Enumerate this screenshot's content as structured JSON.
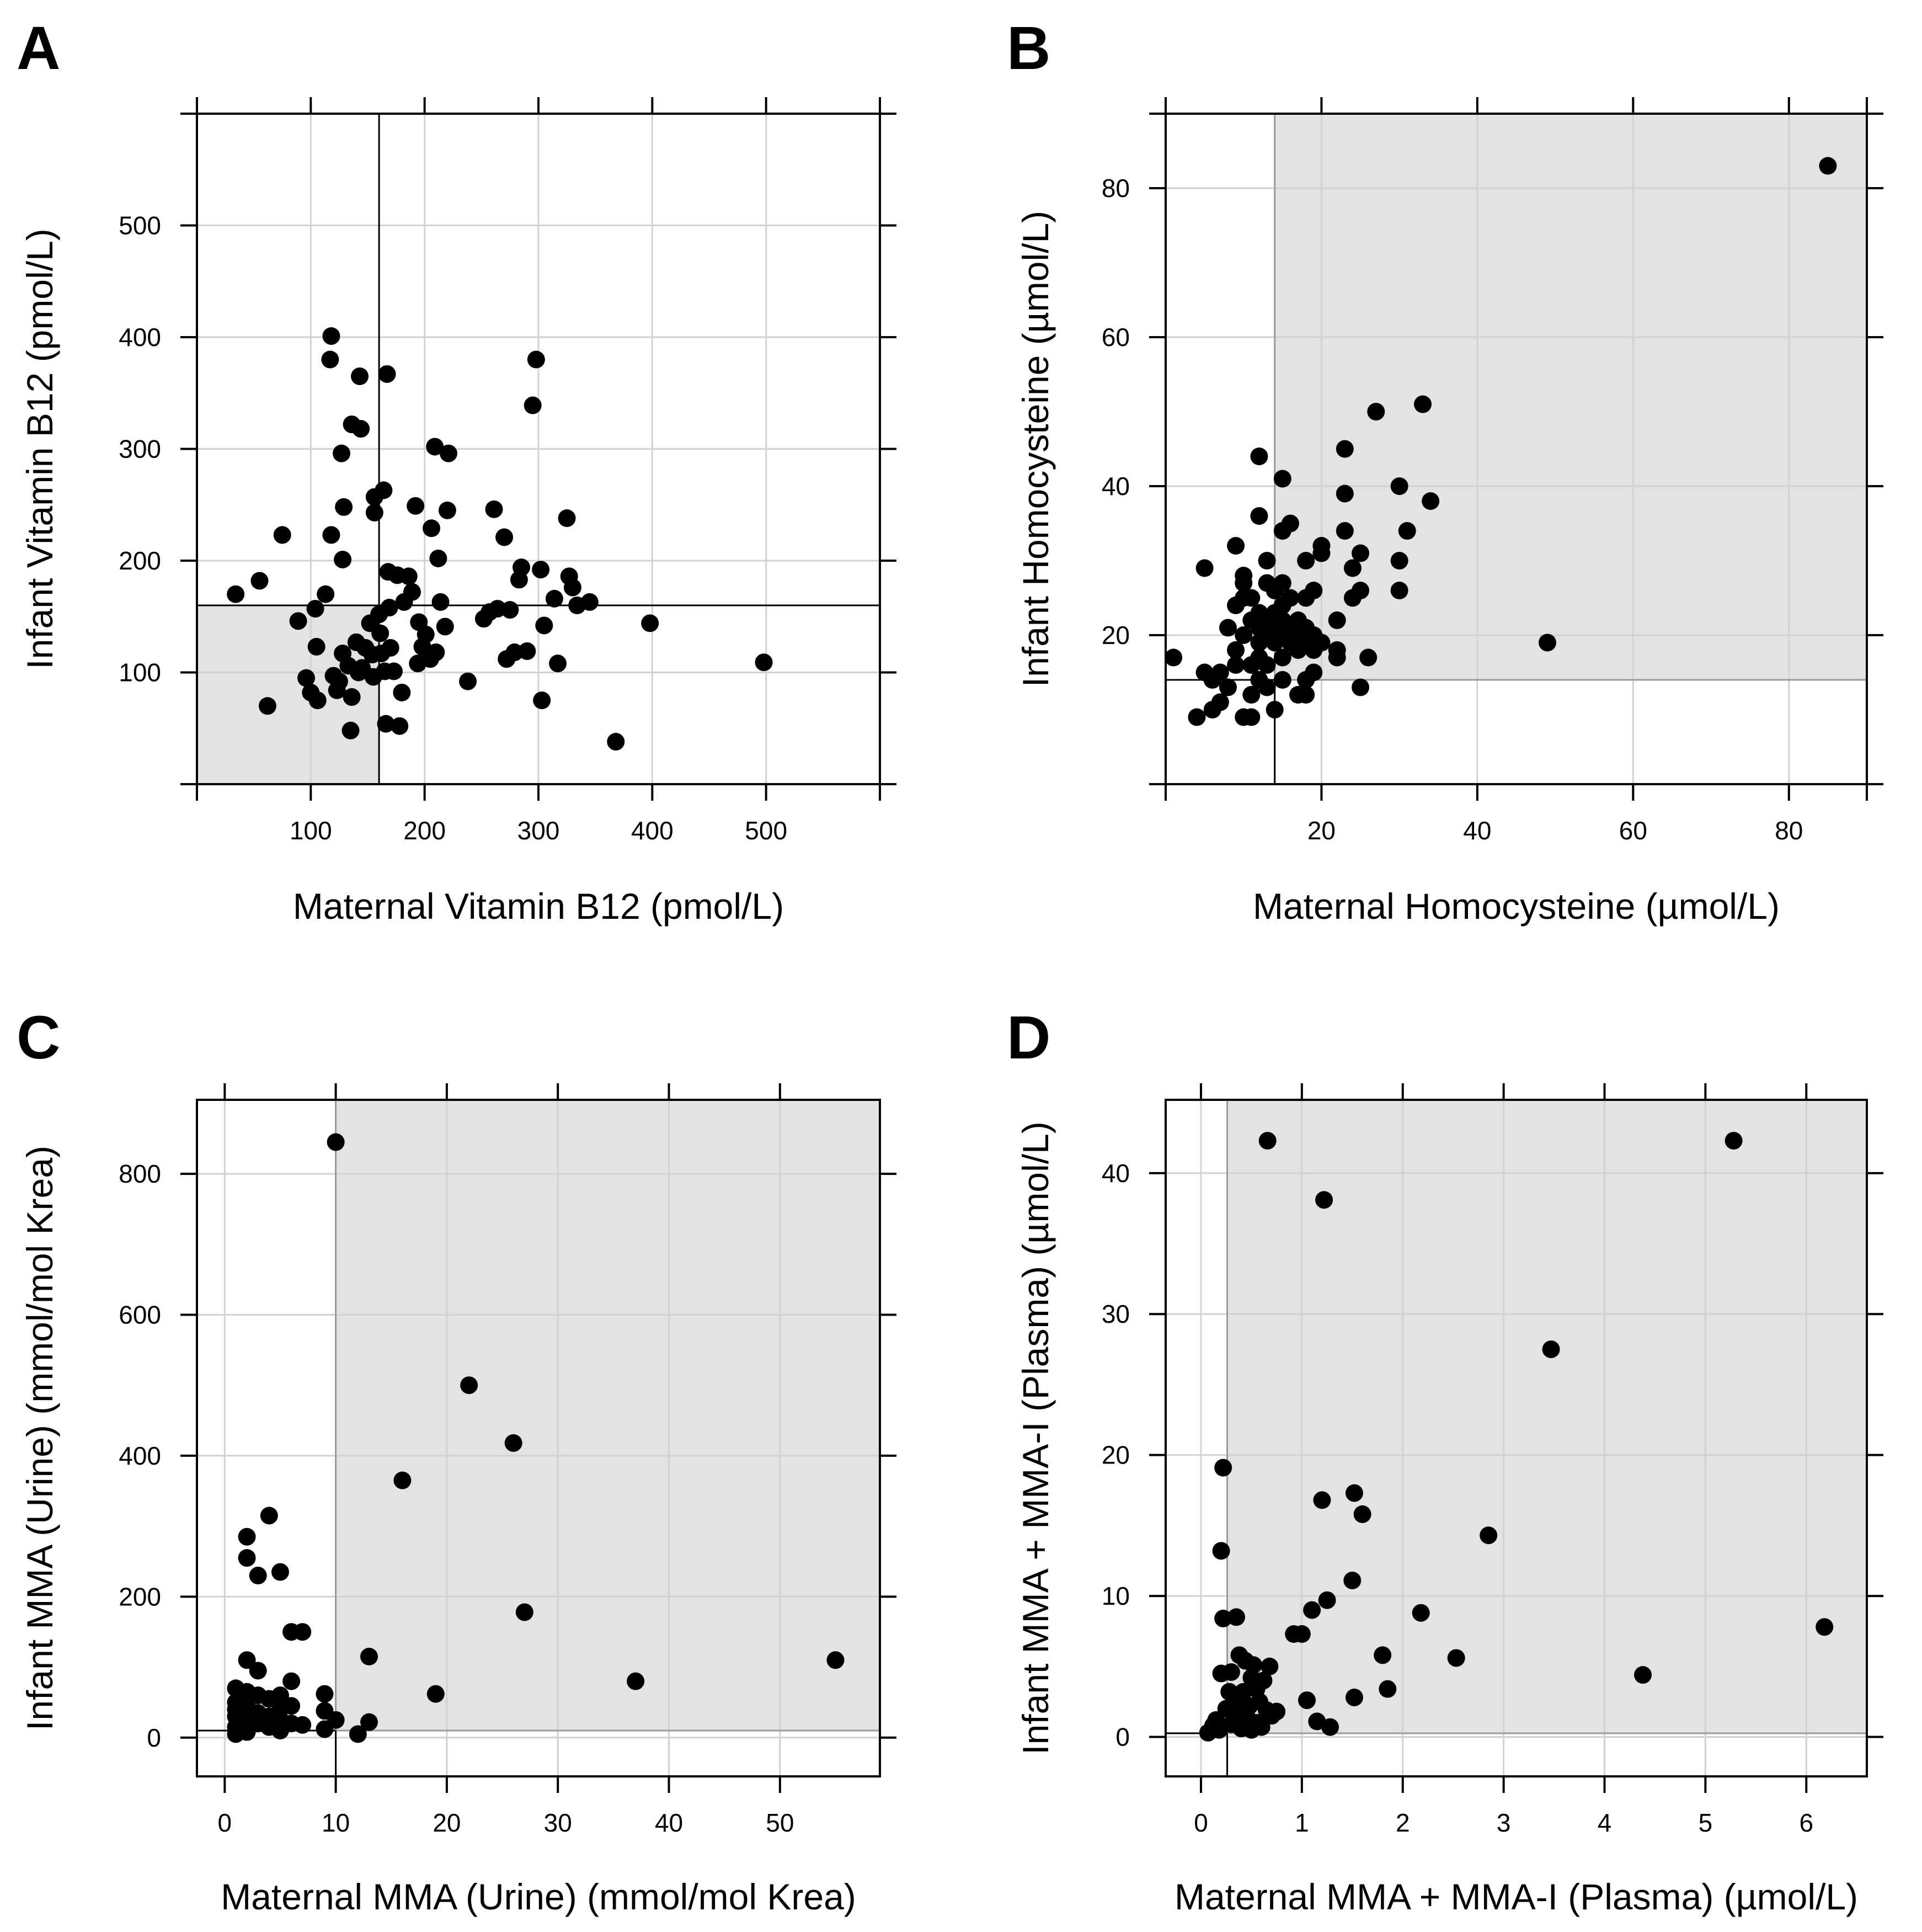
{
  "chart_data": [
    {
      "type": "scatter",
      "panel_label": "A",
      "xlabel": "Maternal Vitamin B12 (pmol/L)",
      "ylabel": "Infant Vitamin B12 (pmol/L)",
      "xlim": [
        0,
        600
      ],
      "ylim": [
        0,
        600
      ],
      "xticks": [
        100,
        200,
        300,
        400,
        500
      ],
      "yticks": [
        100,
        200,
        300,
        400,
        500
      ],
      "grid": true,
      "cutoff": {
        "x": 160,
        "y": 160
      },
      "shaded_region": "below-left of cutoffs",
      "points": [
        [
          34,
          170
        ],
        [
          55,
          182
        ],
        [
          62,
          70
        ],
        [
          75,
          223
        ],
        [
          89,
          146
        ],
        [
          96,
          95
        ],
        [
          104,
          157
        ],
        [
          100,
          82
        ],
        [
          105,
          123
        ],
        [
          106,
          75
        ],
        [
          113,
          170
        ],
        [
          118,
          401
        ],
        [
          117,
          380
        ],
        [
          118,
          223
        ],
        [
          120,
          97
        ],
        [
          123,
          84
        ],
        [
          125,
          92
        ],
        [
          128,
          201
        ],
        [
          127,
          296
        ],
        [
          128,
          117
        ],
        [
          129,
          248
        ],
        [
          133,
          106
        ],
        [
          136,
          78
        ],
        [
          135,
          48
        ],
        [
          136,
          322
        ],
        [
          140,
          127
        ],
        [
          142,
          100
        ],
        [
          143,
          365
        ],
        [
          144,
          318
        ],
        [
          145,
          104
        ],
        [
          148,
          122
        ],
        [
          152,
          144
        ],
        [
          154,
          116
        ],
        [
          155,
          96
        ],
        [
          156,
          243
        ],
        [
          156,
          257
        ],
        [
          160,
          152
        ],
        [
          161,
          135
        ],
        [
          162,
          117
        ],
        [
          164,
          263
        ],
        [
          165,
          101
        ],
        [
          166,
          54
        ],
        [
          167,
          367
        ],
        [
          168,
          190
        ],
        [
          169,
          158
        ],
        [
          170,
          122
        ],
        [
          173,
          101
        ],
        [
          176,
          187
        ],
        [
          178,
          52
        ],
        [
          180,
          82
        ],
        [
          182,
          163
        ],
        [
          186,
          186
        ],
        [
          189,
          172
        ],
        [
          192,
          249
        ],
        [
          194,
          108
        ],
        [
          195,
          145
        ],
        [
          198,
          123
        ],
        [
          201,
          134
        ],
        [
          205,
          112
        ],
        [
          206,
          229
        ],
        [
          209,
          302
        ],
        [
          210,
          118
        ],
        [
          212,
          202
        ],
        [
          214,
          163
        ],
        [
          218,
          141
        ],
        [
          220,
          245
        ],
        [
          221,
          296
        ],
        [
          238,
          92
        ],
        [
          252,
          148
        ],
        [
          257,
          154
        ],
        [
          261,
          246
        ],
        [
          264,
          157
        ],
        [
          270,
          221
        ],
        [
          272,
          112
        ],
        [
          275,
          156
        ],
        [
          279,
          118
        ],
        [
          283,
          183
        ],
        [
          285,
          194
        ],
        [
          290,
          119
        ],
        [
          295,
          339
        ],
        [
          298,
          380
        ],
        [
          302,
          192
        ],
        [
          303,
          75
        ],
        [
          305,
          142
        ],
        [
          314,
          166
        ],
        [
          317,
          108
        ],
        [
          325,
          238
        ],
        [
          327,
          186
        ],
        [
          330,
          176
        ],
        [
          334,
          160
        ],
        [
          345,
          163
        ],
        [
          368,
          38
        ],
        [
          398,
          144
        ],
        [
          498,
          109
        ]
      ]
    },
    {
      "type": "scatter",
      "panel_label": "B",
      "xlabel": "Maternal Homocysteine (µmol/L)",
      "ylabel": "Infant Homocysteine (µmol/L)",
      "xlim": [
        0,
        90
      ],
      "ylim": [
        0,
        90
      ],
      "xticks": [
        20,
        40,
        60,
        80
      ],
      "yticks": [
        20,
        40,
        60,
        80
      ],
      "grid": true,
      "cutoff": {
        "x": 14,
        "y": 14
      },
      "shaded_region": "above-right of cutoffs",
      "points": [
        [
          1,
          17
        ],
        [
          4,
          9
        ],
        [
          5,
          29
        ],
        [
          5,
          15
        ],
        [
          6,
          10
        ],
        [
          6,
          14
        ],
        [
          7,
          11
        ],
        [
          7,
          15
        ],
        [
          8,
          13
        ],
        [
          8,
          21
        ],
        [
          9,
          16
        ],
        [
          9,
          18
        ],
        [
          9,
          32
        ],
        [
          9,
          24
        ],
        [
          10,
          9
        ],
        [
          10,
          28
        ],
        [
          10,
          27
        ],
        [
          10,
          20
        ],
        [
          10,
          25
        ],
        [
          11,
          12
        ],
        [
          11,
          9
        ],
        [
          11,
          16
        ],
        [
          11,
          22
        ],
        [
          11,
          25
        ],
        [
          12,
          14
        ],
        [
          12,
          17
        ],
        [
          12,
          19
        ],
        [
          12,
          21
        ],
        [
          12,
          23
        ],
        [
          12,
          36
        ],
        [
          12,
          44
        ],
        [
          13,
          13
        ],
        [
          13,
          16
        ],
        [
          13,
          20
        ],
        [
          13,
          22
        ],
        [
          13,
          27
        ],
        [
          13,
          30
        ],
        [
          14,
          10
        ],
        [
          14,
          19
        ],
        [
          14,
          21
        ],
        [
          14,
          23
        ],
        [
          14,
          26
        ],
        [
          15,
          14
        ],
        [
          15,
          17
        ],
        [
          15,
          20
        ],
        [
          15,
          22
        ],
        [
          15,
          24
        ],
        [
          15,
          27
        ],
        [
          15,
          34
        ],
        [
          15,
          41
        ],
        [
          16,
          19
        ],
        [
          16,
          21
        ],
        [
          16,
          25
        ],
        [
          16,
          35
        ],
        [
          17,
          12
        ],
        [
          17,
          18
        ],
        [
          17,
          20
        ],
        [
          17,
          22
        ],
        [
          18,
          12
        ],
        [
          18,
          14
        ],
        [
          18,
          19
        ],
        [
          18,
          21
        ],
        [
          18,
          25
        ],
        [
          18,
          30
        ],
        [
          19,
          15
        ],
        [
          19,
          18
        ],
        [
          19,
          20
        ],
        [
          19,
          26
        ],
        [
          20,
          19
        ],
        [
          20,
          31
        ],
        [
          20,
          32
        ],
        [
          22,
          17
        ],
        [
          22,
          18
        ],
        [
          22,
          22
        ],
        [
          23,
          34
        ],
        [
          23,
          39
        ],
        [
          23,
          45
        ],
        [
          24,
          25
        ],
        [
          24,
          29
        ],
        [
          25,
          13
        ],
        [
          25,
          26
        ],
        [
          25,
          31
        ],
        [
          26,
          17
        ],
        [
          27,
          50
        ],
        [
          30,
          40
        ],
        [
          30,
          30
        ],
        [
          30,
          26
        ],
        [
          31,
          34
        ],
        [
          33,
          51
        ],
        [
          34,
          38
        ],
        [
          49,
          19
        ],
        [
          85,
          83
        ]
      ]
    },
    {
      "type": "scatter",
      "panel_label": "C",
      "xlabel": "Maternal MMA (Urine) (mmol/mol Krea)",
      "ylabel": "Infant MMA (Urine) (mmol/mol Krea)",
      "xlim": [
        -2.5,
        59
      ],
      "ylim": [
        -55,
        905
      ],
      "xticks": [
        0,
        10,
        20,
        30,
        40,
        50
      ],
      "yticks": [
        0,
        200,
        400,
        600,
        800
      ],
      "grid": true,
      "cutoff": {
        "x": 10,
        "y": 10
      },
      "shaded_region": "above-right of cutoffs",
      "points": [
        [
          1,
          70
        ],
        [
          1,
          50
        ],
        [
          1,
          30
        ],
        [
          1,
          15
        ],
        [
          1,
          5
        ],
        [
          1,
          40
        ],
        [
          2,
          285
        ],
        [
          2,
          255
        ],
        [
          2,
          110
        ],
        [
          2,
          65
        ],
        [
          2,
          45
        ],
        [
          2,
          25
        ],
        [
          2,
          10
        ],
        [
          2,
          8
        ],
        [
          3,
          230
        ],
        [
          3,
          95
        ],
        [
          3,
          60
        ],
        [
          3,
          35
        ],
        [
          3,
          20
        ],
        [
          4,
          315
        ],
        [
          4,
          55
        ],
        [
          4,
          30
        ],
        [
          4,
          15
        ],
        [
          5,
          235
        ],
        [
          5,
          60
        ],
        [
          5,
          40
        ],
        [
          5,
          25
        ],
        [
          5,
          10
        ],
        [
          6,
          150
        ],
        [
          6,
          80
        ],
        [
          6,
          45
        ],
        [
          6,
          20
        ],
        [
          7,
          150
        ],
        [
          7,
          18
        ],
        [
          9,
          62
        ],
        [
          9,
          38
        ],
        [
          9,
          12
        ],
        [
          10,
          845
        ],
        [
          10,
          25
        ],
        [
          12,
          5
        ],
        [
          13,
          115
        ],
        [
          13,
          22
        ],
        [
          16,
          365
        ],
        [
          19,
          62
        ],
        [
          22,
          500
        ],
        [
          26,
          418
        ],
        [
          27,
          178
        ],
        [
          37,
          80
        ],
        [
          55,
          110
        ]
      ]
    },
    {
      "type": "scatter",
      "panel_label": "D",
      "xlabel": "Maternal MMA + MMA-I (Plasma) (µmol/L)",
      "ylabel": "Infant MMA + MMA-I (Plasma) (µmol/L)",
      "xlim": [
        -0.35,
        6.6
      ],
      "ylim": [
        -2.8,
        45.2
      ],
      "xticks": [
        0,
        1,
        2,
        3,
        4,
        5,
        6
      ],
      "yticks": [
        0,
        10,
        20,
        30,
        40
      ],
      "grid": true,
      "cutoff": {
        "x": 0.26,
        "y": 0.26
      },
      "shaded_region": "above-right of cutoffs",
      "points": [
        [
          0.07,
          0.3
        ],
        [
          0.12,
          0.8
        ],
        [
          0.15,
          1.2
        ],
        [
          0.18,
          0.5
        ],
        [
          0.2,
          4.5
        ],
        [
          0.2,
          13.2
        ],
        [
          0.22,
          19.1
        ],
        [
          0.22,
          8.4
        ],
        [
          0.25,
          2.0
        ],
        [
          0.28,
          3.2
        ],
        [
          0.3,
          4.6
        ],
        [
          0.3,
          0.9
        ],
        [
          0.33,
          1.8
        ],
        [
          0.35,
          8.5
        ],
        [
          0.35,
          2.6
        ],
        [
          0.38,
          5.8
        ],
        [
          0.4,
          0.6
        ],
        [
          0.42,
          3.2
        ],
        [
          0.44,
          5.4
        ],
        [
          0.45,
          1.5
        ],
        [
          0.48,
          2.2
        ],
        [
          0.5,
          4.2
        ],
        [
          0.5,
          0.5
        ],
        [
          0.52,
          5.1
        ],
        [
          0.55,
          3.4
        ],
        [
          0.55,
          1.0
        ],
        [
          0.58,
          2.5
        ],
        [
          0.6,
          0.7
        ],
        [
          0.62,
          4.0
        ],
        [
          0.65,
          1.9
        ],
        [
          0.66,
          42.3
        ],
        [
          0.68,
          5.0
        ],
        [
          0.7,
          1.5
        ],
        [
          0.75,
          1.8
        ],
        [
          0.92,
          7.3
        ],
        [
          1.0,
          7.3
        ],
        [
          1.05,
          2.6
        ],
        [
          1.1,
          9.0
        ],
        [
          1.15,
          1.1
        ],
        [
          1.2,
          16.8
        ],
        [
          1.22,
          38.1
        ],
        [
          1.25,
          9.7
        ],
        [
          1.28,
          0.7
        ],
        [
          1.5,
          11.1
        ],
        [
          1.52,
          17.3
        ],
        [
          1.52,
          2.8
        ],
        [
          1.6,
          15.8
        ],
        [
          1.8,
          5.8
        ],
        [
          1.85,
          3.4
        ],
        [
          2.18,
          8.8
        ],
        [
          2.53,
          5.6
        ],
        [
          2.85,
          14.3
        ],
        [
          3.47,
          27.5
        ],
        [
          4.38,
          4.4
        ],
        [
          5.28,
          42.3
        ],
        [
          6.18,
          7.8
        ]
      ]
    }
  ]
}
